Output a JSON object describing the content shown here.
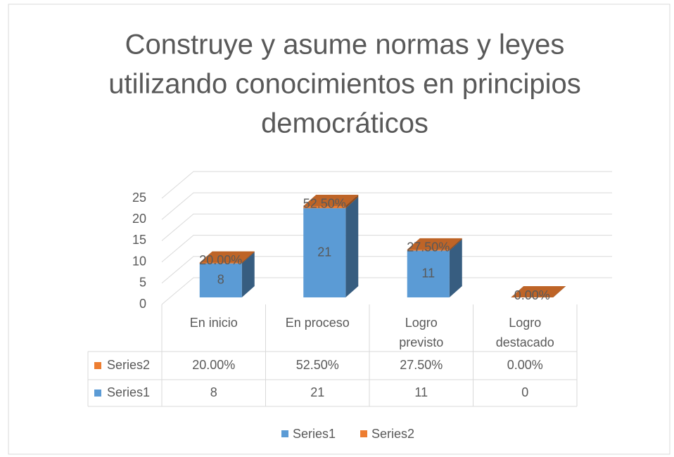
{
  "chart_data": {
    "type": "bar3d",
    "title": [
      "Construye y asume normas y leyes",
      "utilizando conocimientos en principios",
      "democráticos"
    ],
    "categories": [
      [
        "En inicio"
      ],
      [
        "En proceso"
      ],
      [
        "Logro",
        "previsto"
      ],
      [
        "Logro",
        "destacado"
      ]
    ],
    "series": [
      {
        "name": "Series1",
        "color": "#5b9bd5",
        "values": [
          8,
          21,
          11,
          0
        ]
      },
      {
        "name": "Series2",
        "color": "#ed7d31",
        "values": [
          0.2,
          0.525,
          0.275,
          0
        ],
        "value_labels": [
          "20.00%",
          "52.50%",
          "27.50%",
          "0.00%"
        ]
      }
    ],
    "ylim": [
      0,
      25
    ],
    "yticks": [
      0,
      5,
      10,
      15,
      20,
      25
    ],
    "grid": true,
    "legend": "bottom",
    "data_table": true
  }
}
